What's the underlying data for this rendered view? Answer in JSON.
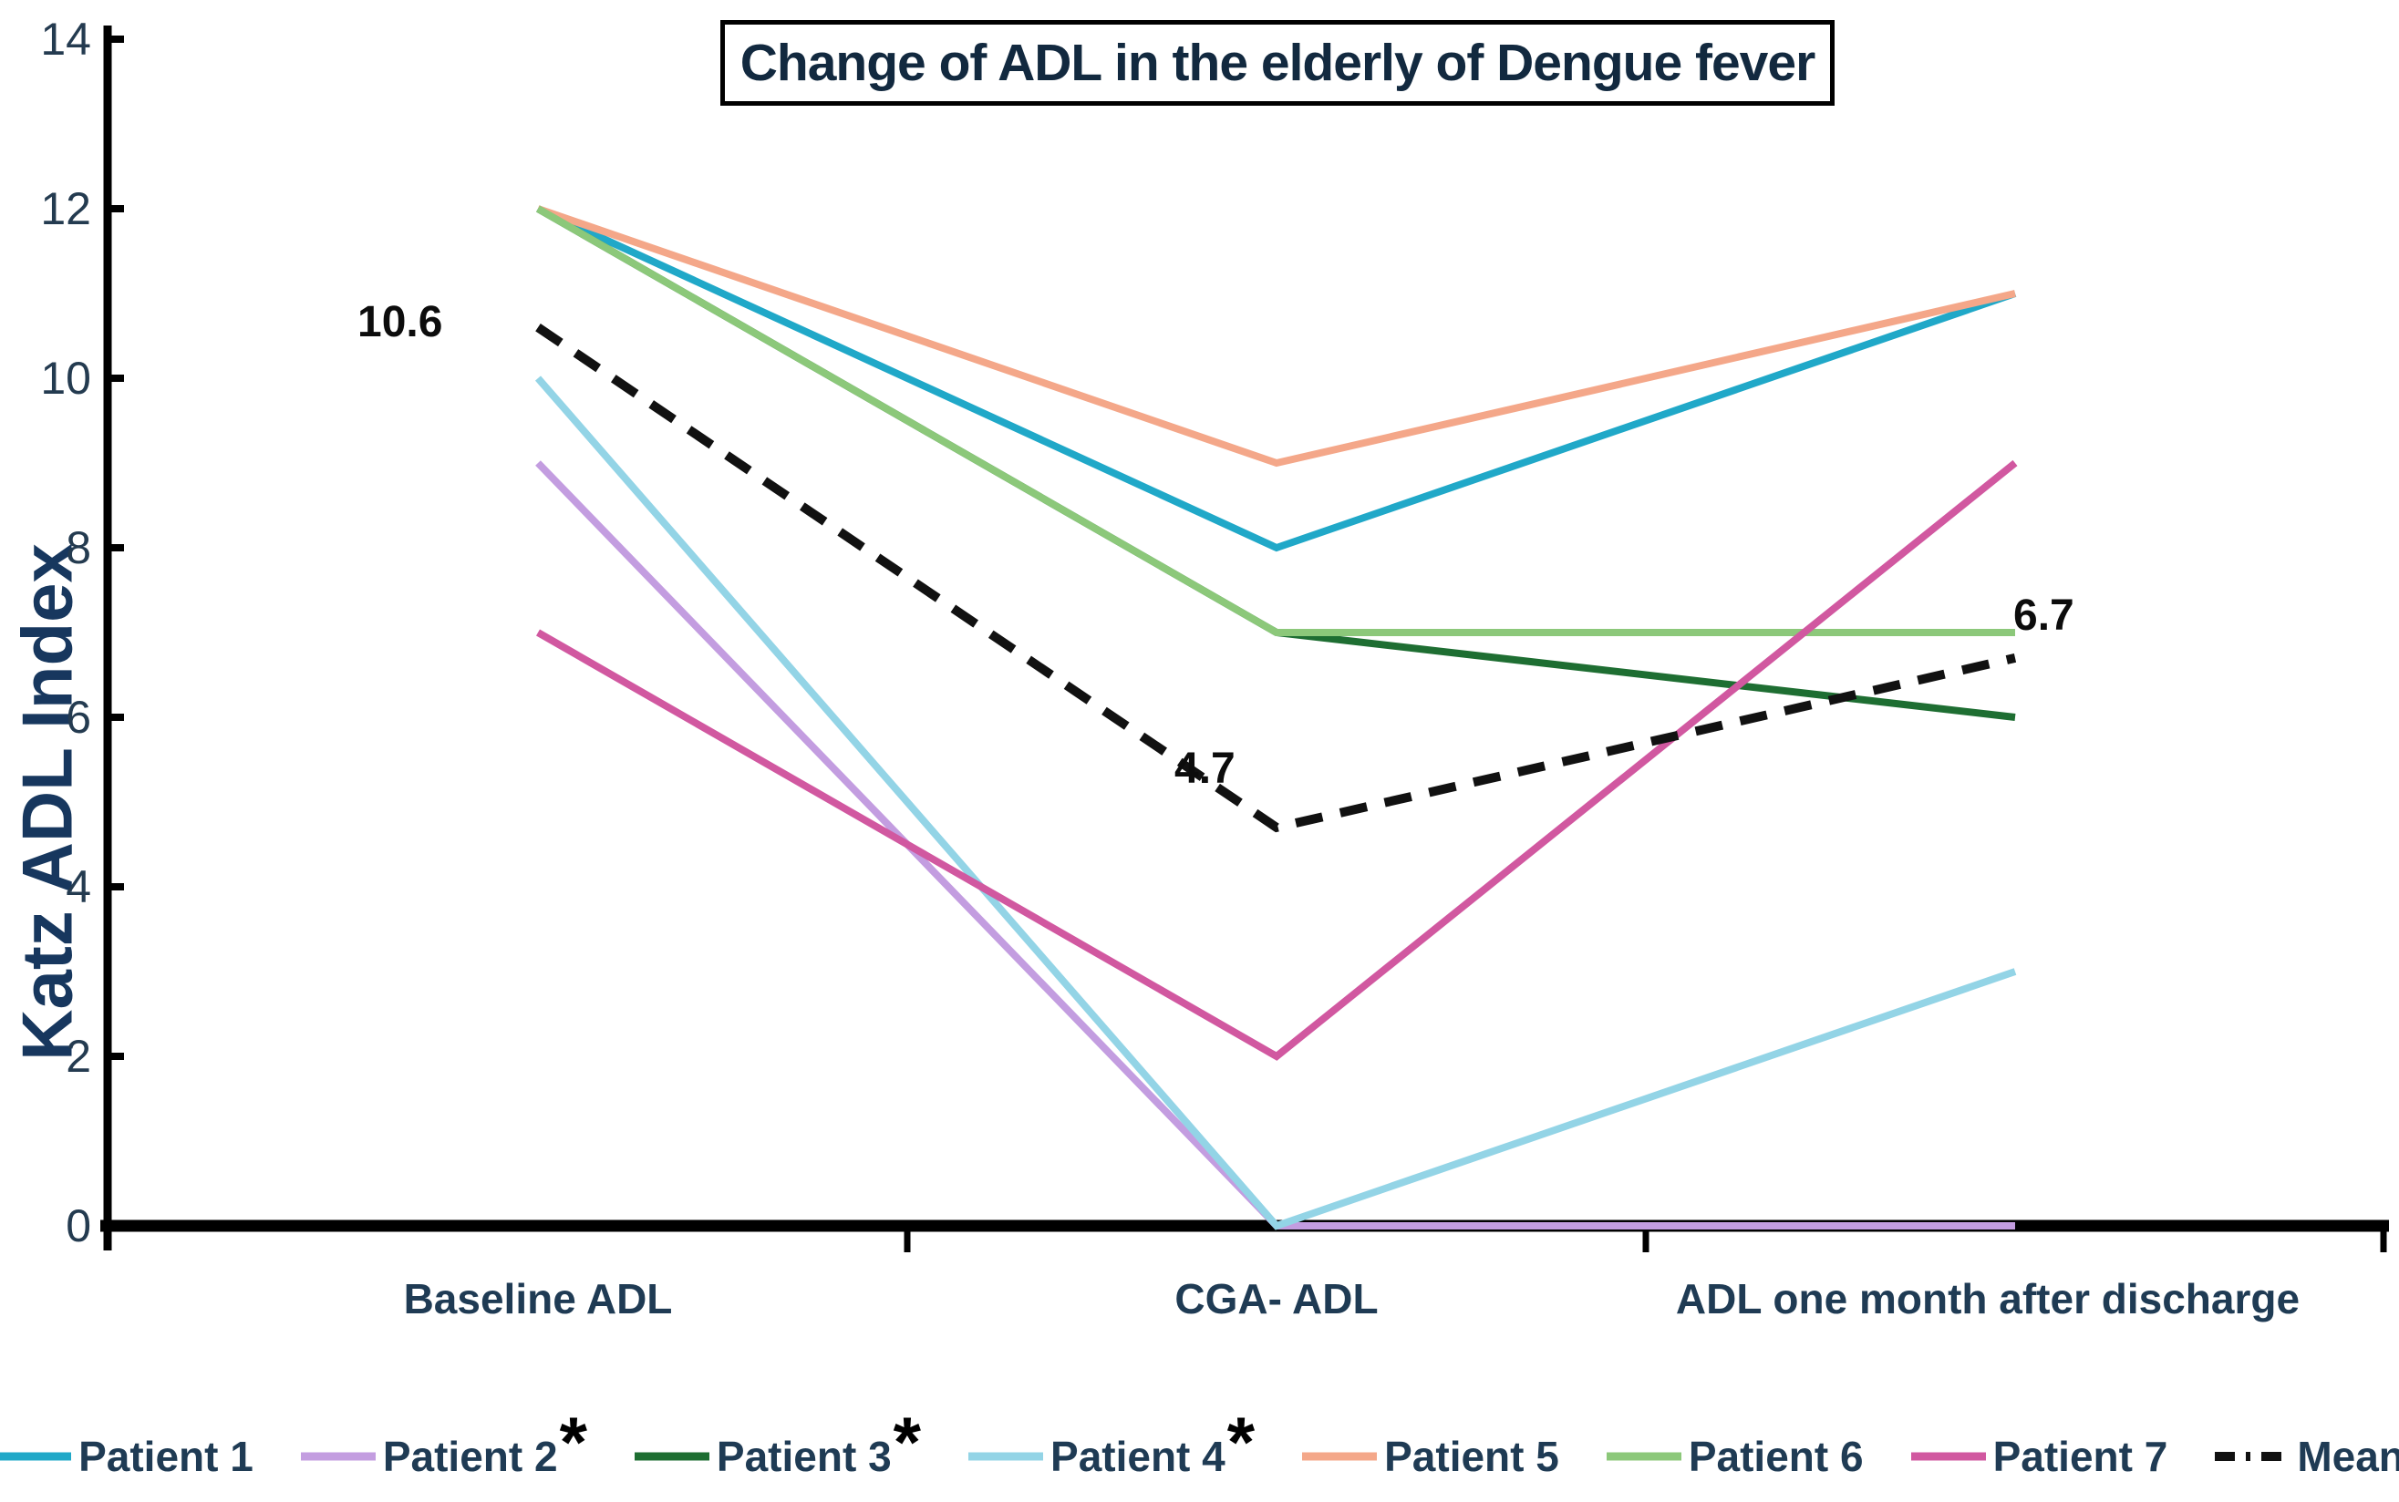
{
  "chart_data": {
    "type": "line",
    "title": "Change of ADL in the elderly of Dengue fever",
    "ylabel": "Katz ADL Index",
    "xlabel": "",
    "categories": [
      "Baseline ADL",
      "CGA- ADL",
      "ADL one month after discharge"
    ],
    "ylim": [
      0,
      14
    ],
    "yticks": [
      0,
      2,
      4,
      6,
      8,
      10,
      12,
      14
    ],
    "grid": false,
    "legend_position": "bottom",
    "axis_color": "#000000",
    "text_color": "#1f3b54",
    "series": [
      {
        "name": "Patient 1",
        "color": "#20a8c8",
        "values": [
          12,
          8,
          11
        ]
      },
      {
        "name": "Patient 2",
        "asterisk": "*",
        "color": "#c39de0",
        "values": [
          9,
          0,
          0
        ]
      },
      {
        "name": "Patient 3",
        "asterisk": "*",
        "color": "#1e6e32",
        "values": [
          12,
          7,
          6
        ]
      },
      {
        "name": "Patient 4",
        "asterisk": "*",
        "color": "#93d4e6",
        "values": [
          10,
          0,
          3
        ]
      },
      {
        "name": "Patient 5",
        "color": "#f4a789",
        "values": [
          12,
          9,
          11
        ]
      },
      {
        "name": "Patient 6",
        "color": "#8cc87a",
        "values": [
          12,
          7,
          7
        ]
      },
      {
        "name": "Patient 7",
        "color": "#d158a0",
        "values": [
          7,
          2,
          9
        ]
      },
      {
        "name": "Mean",
        "color": "#111111",
        "dashed": true,
        "values": [
          10.6,
          4.7,
          6.7
        ]
      }
    ],
    "annotations": [
      {
        "text": "10.6",
        "series": "Mean",
        "point": 0
      },
      {
        "text": "4.7",
        "series": "Mean",
        "point": 1
      },
      {
        "text": "6.7",
        "series": "Mean",
        "point": 2
      }
    ]
  }
}
